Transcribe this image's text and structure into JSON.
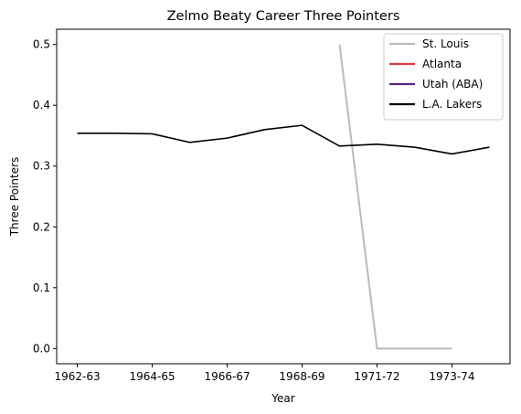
{
  "chart_data": {
    "type": "line",
    "title": "Zelmo Beaty Career Three Pointers",
    "xlabel": "Year",
    "ylabel": "Three Pointers",
    "x_tick_labels": [
      "1962-63",
      "1964-65",
      "1966-67",
      "1968-69",
      "1971-72",
      "1973-74"
    ],
    "x_tick_values": [
      0,
      2,
      4,
      6,
      8,
      10
    ],
    "xlim": [
      -0.55,
      11.55
    ],
    "ylim": [
      -0.025,
      0.525
    ],
    "y_ticks": [
      0.0,
      0.1,
      0.2,
      0.3,
      0.4,
      0.5
    ],
    "y_tick_labels": [
      "0.0",
      "0.1",
      "0.2",
      "0.3",
      "0.4",
      "0.5"
    ],
    "grid": false,
    "legend_position": "top-right",
    "series": [
      {
        "name": "St. Louis",
        "color": "#bbbbbb",
        "x": [
          7,
          8,
          9,
          10
        ],
        "values": [
          0.5,
          0.0,
          0.0,
          0.0
        ]
      },
      {
        "name": "Atlanta",
        "color": "#d93a3f",
        "x": [],
        "values": []
      },
      {
        "name": "Utah (ABA)",
        "color": "#55287f",
        "x": [],
        "values": []
      },
      {
        "name": "L.A. Lakers",
        "color": "#000000",
        "x": [
          0,
          1,
          2,
          3,
          4,
          5,
          6,
          7,
          8,
          9,
          10,
          11
        ],
        "values": [
          0.354,
          0.354,
          0.353,
          0.339,
          0.346,
          0.36,
          0.367,
          0.333,
          0.336,
          0.331,
          0.32,
          0.331
        ]
      }
    ]
  }
}
